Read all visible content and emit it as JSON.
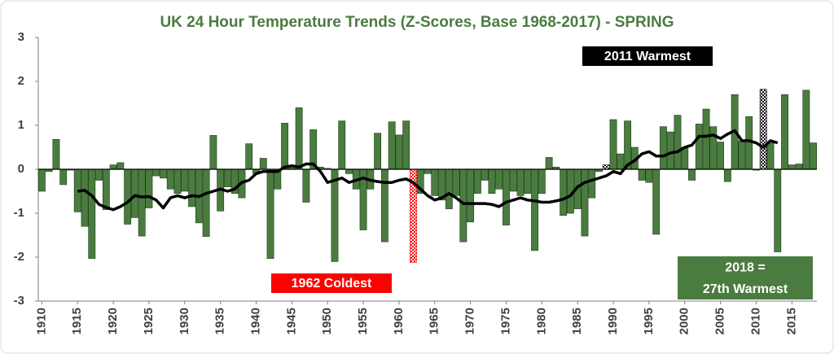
{
  "chart_data": {
    "type": "bar",
    "title": "UK 24 Hour Temperature Trends (Z-Scores, Base 1968-2017) - SPRING",
    "categories": [
      "1910",
      null,
      null,
      null,
      null,
      "1915",
      null,
      null,
      null,
      null,
      "1920",
      null,
      null,
      null,
      null,
      "1925",
      null,
      null,
      null,
      null,
      "1930",
      null,
      null,
      null,
      null,
      "1935",
      null,
      null,
      null,
      null,
      "1940",
      null,
      null,
      null,
      null,
      "1945",
      null,
      null,
      null,
      null,
      "1950",
      null,
      null,
      null,
      null,
      "1955",
      null,
      null,
      null,
      null,
      "1960",
      null,
      null,
      null,
      null,
      "1965",
      null,
      null,
      null,
      null,
      "1970",
      null,
      null,
      null,
      null,
      "1975",
      null,
      null,
      null,
      null,
      "1980",
      null,
      null,
      null,
      null,
      "1985",
      null,
      null,
      null,
      null,
      "1990",
      null,
      null,
      null,
      null,
      "1995",
      null,
      null,
      null,
      null,
      "2000",
      null,
      null,
      null,
      null,
      "2005",
      null,
      null,
      null,
      null,
      "2010",
      null,
      null,
      null,
      null,
      "2015",
      null,
      null,
      null
    ],
    "values": [
      -0.5,
      -0.05,
      0.68,
      -0.35,
      -0.02,
      -0.97,
      -1.3,
      -2.03,
      -0.25,
      -0.92,
      0.1,
      0.15,
      -1.25,
      -1.1,
      -1.52,
      -0.88,
      -0.15,
      -0.2,
      -0.45,
      -0.55,
      -0.5,
      -0.85,
      -1.22,
      -1.53,
      0.77,
      -0.95,
      -0.4,
      -0.55,
      -0.65,
      0.58,
      -0.1,
      0.25,
      -2.03,
      -0.45,
      1.05,
      0.08,
      1.4,
      -0.75,
      0.9,
      0.05,
      0.02,
      -2.1,
      1.1,
      -0.1,
      -0.45,
      -1.38,
      -0.45,
      0.82,
      -1.65,
      1.08,
      0.78,
      1.1,
      -2.12,
      -0.55,
      -0.1,
      -0.6,
      -0.7,
      -0.9,
      -0.6,
      -1.65,
      -1.2,
      -0.55,
      -0.25,
      -0.55,
      -0.45,
      -1.27,
      -0.5,
      -0.6,
      -0.55,
      -1.85,
      -0.55,
      0.27,
      0.05,
      -1.05,
      -1.0,
      -0.9,
      -1.52,
      -0.65,
      -0.05,
      0.1,
      1.13,
      0.35,
      1.1,
      0.5,
      -0.25,
      -0.3,
      -1.48,
      0.97,
      0.85,
      1.23,
      0.5,
      -0.25,
      1.03,
      1.37,
      0.97,
      0.62,
      -0.28,
      1.7,
      0.65,
      1.2,
      -0.02,
      1.82,
      0.6,
      -1.88,
      1.7,
      0.1,
      0.12,
      1.8,
      0.6
    ],
    "color": "#4a7c3f",
    "highlight_bars": [
      {
        "category_index": 52,
        "color": "#ff0000"
      },
      {
        "category_index": 79,
        "color": "#000000"
      },
      {
        "category_index": 101,
        "color": "#000000"
      }
    ],
    "trend": {
      "color": "#000000",
      "values": [
        null,
        null,
        null,
        null,
        null,
        -0.5,
        -0.48,
        -0.6,
        -0.8,
        -0.87,
        -0.92,
        -0.85,
        -0.75,
        -0.6,
        -0.63,
        -0.62,
        -0.7,
        -0.88,
        -0.65,
        -0.6,
        -0.65,
        -0.6,
        -0.62,
        -0.55,
        -0.5,
        -0.45,
        -0.5,
        -0.45,
        -0.3,
        -0.25,
        -0.1,
        -0.05,
        -0.05,
        -0.05,
        0.05,
        0.08,
        0.05,
        0.12,
        0.12,
        -0.05,
        -0.3,
        -0.25,
        -0.2,
        -0.3,
        -0.25,
        -0.2,
        -0.25,
        -0.28,
        -0.3,
        -0.3,
        -0.25,
        -0.22,
        -0.3,
        -0.45,
        -0.6,
        -0.7,
        -0.65,
        -0.55,
        -0.65,
        -0.78,
        -0.78,
        -0.78,
        -0.78,
        -0.8,
        -0.85,
        -0.75,
        -0.7,
        -0.65,
        -0.7,
        -0.72,
        -0.75,
        -0.75,
        -0.72,
        -0.68,
        -0.6,
        -0.4,
        -0.3,
        -0.25,
        -0.2,
        -0.15,
        -0.05,
        -0.1,
        0.1,
        0.2,
        0.35,
        0.4,
        0.3,
        0.3,
        0.37,
        0.4,
        0.5,
        0.55,
        0.75,
        0.75,
        0.78,
        0.7,
        0.8,
        0.88,
        0.65,
        0.65,
        0.6,
        0.5,
        0.65,
        0.6,
        null,
        null,
        null,
        null,
        null
      ]
    },
    "ylim": [
      -3,
      3
    ],
    "yticks": [
      -3,
      -2,
      -1,
      0,
      1,
      2,
      3
    ],
    "annotations": [
      {
        "lines": [
          "2011 Warmest"
        ],
        "color": "#000000"
      },
      {
        "lines": [
          "1962 Coldest"
        ],
        "color": "#ff0000"
      },
      {
        "lines": [
          "2018 =",
          "27th Warmest"
        ],
        "color": "#4a7c3f"
      }
    ]
  }
}
